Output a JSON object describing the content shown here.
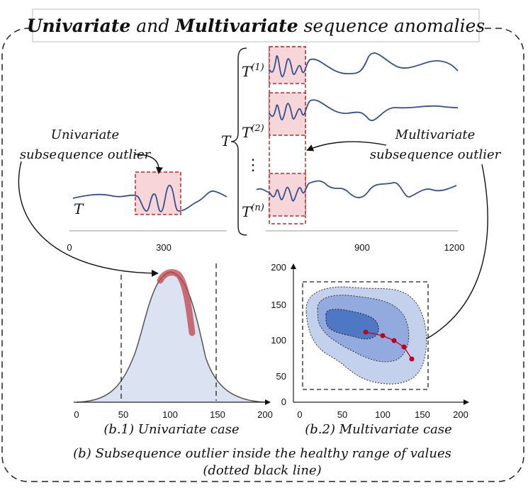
{
  "header": {
    "title_word1": "Univariate",
    "title_and": " and ",
    "title_word2": "Multivariate",
    "title_rest": " sequence anomalies"
  },
  "series_labels": {
    "T": "T",
    "T1_base": "T",
    "T1_sup": "(1)",
    "T2_base": "T",
    "T2_sup": "(2)",
    "Tn_base": "T",
    "Tn_sup": "(n)",
    "group_T": "T",
    "ellipsis": "⋮"
  },
  "annotations": {
    "univariate_line1": "Univariate",
    "univariate_line2": "subsequence  outlier",
    "multivariate_line1": "Multivariate",
    "multivariate_line2": "subsequence  outlier"
  },
  "top_axis": {
    "ticks": [
      "0",
      "300",
      "900",
      "1200"
    ]
  },
  "hist_axis": {
    "ticks": [
      "0",
      "50",
      "100",
      "150",
      "200"
    ]
  },
  "contour_axis": {
    "x_ticks": [
      "0",
      "50",
      "100",
      "150",
      "200"
    ],
    "y_ticks": [
      "0",
      "50",
      "100",
      "150",
      "200"
    ]
  },
  "captions": {
    "b1": "(b.1) Univariate case",
    "b2": "(b.2) Multivariate case",
    "main_line1": "(b) Subsequence outlier inside the healthy range of values",
    "main_line2": "(dotted black line)"
  },
  "colors": {
    "series_line": "#34508f",
    "anomaly_fill": "#f6d6d9",
    "anomaly_stroke": "#c0262c",
    "hist_fill": "#dbe3f3",
    "hist_highlight": "#c0444a",
    "contour_outer": "#c4d1ec",
    "contour_mid": "#92aadd",
    "contour_inner": "#4f78c4",
    "path_point": "#c0001a"
  }
}
